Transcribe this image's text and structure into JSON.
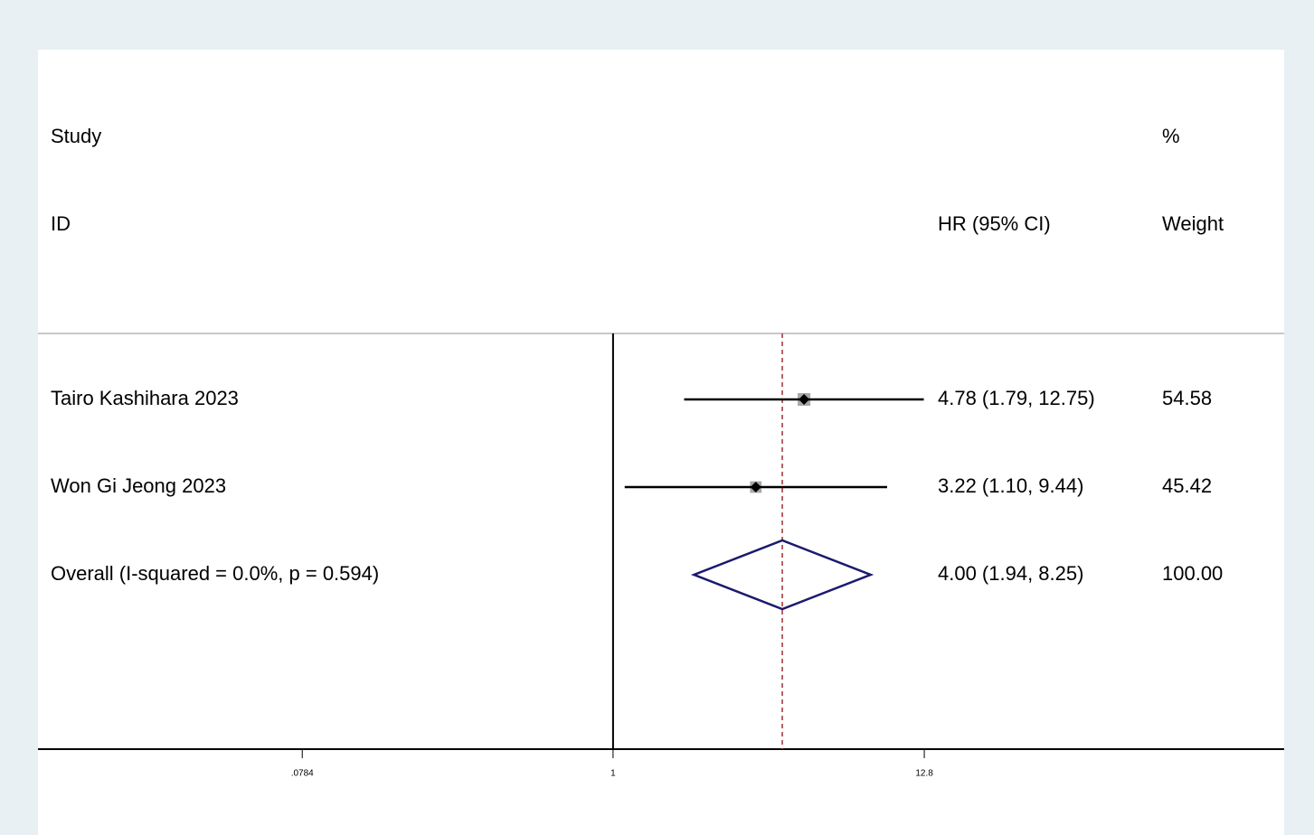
{
  "chart_data": {
    "type": "forest",
    "column_headers": {
      "study": [
        "Study",
        "ID"
      ],
      "estimate": "HR (95% CI)",
      "weight": [
        "%",
        "Weight"
      ]
    },
    "categories": [
      "Tairo Kashihara 2023",
      "Won Gi Jeong 2023",
      "Overall  (I-squared = 0.0%, p = 0.594)"
    ],
    "values": [
      4.78,
      3.22,
      4.0
    ],
    "lower": [
      1.79,
      1.1,
      1.94
    ],
    "upper": [
      12.75,
      9.44,
      8.25
    ],
    "value_labels": [
      "4.78 (1.79, 12.75)",
      "3.22 (1.10, 9.44)",
      "4.00 (1.94, 8.25)"
    ],
    "weights": [
      54.58,
      45.42,
      100
    ],
    "weight_labels": [
      "54.58",
      "45.42",
      "100.00"
    ],
    "overall_index": 2,
    "null_line": 1,
    "log_scale": true,
    "xlim": [
      0.009,
      244
    ],
    "xticks": [
      {
        "value": 0.0784,
        "label": ".0784"
      },
      1,
      12.8
    ],
    "colors": {
      "ci": "#000000",
      "square": "#a8a8a8",
      "diamond": "#1a1a6e",
      "overall_line": "#a03030"
    }
  }
}
